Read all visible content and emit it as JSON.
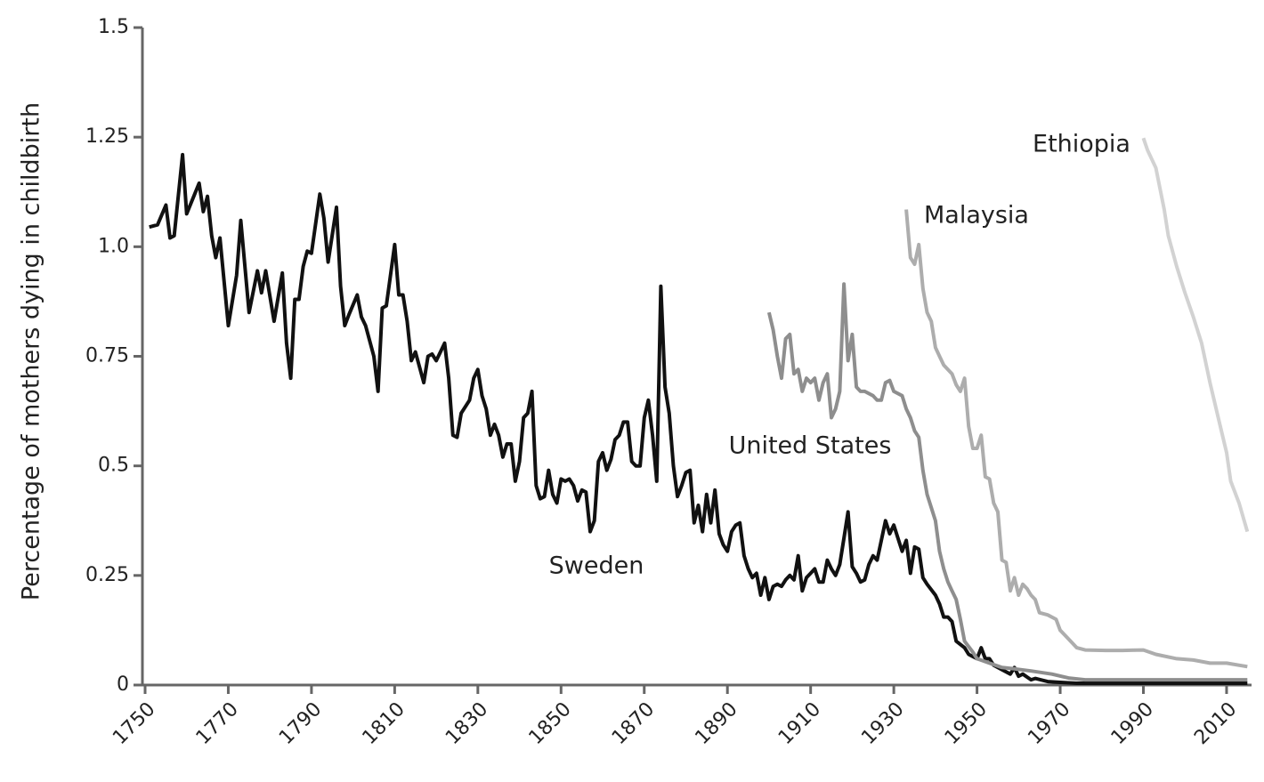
{
  "chart_data": {
    "type": "line",
    "y_label": "Percentage of mothers dying in childbirth",
    "xlim": [
      1750,
      2016
    ],
    "xticks": [
      1750,
      1770,
      1790,
      1810,
      1830,
      1850,
      1870,
      1890,
      1910,
      1930,
      1950,
      1970,
      1990,
      2010
    ],
    "ylim": [
      0,
      1.5
    ],
    "yticks": [
      0,
      0.25,
      0.5,
      0.75,
      {
        "value": 1,
        "label": "1.0"
      },
      1.25,
      1.5
    ],
    "series": [
      {
        "name": "Sweden",
        "color": "#111111",
        "x": [
          1751,
          1753,
          1755,
          1756,
          1757,
          1759,
          1760,
          1763,
          1764,
          1765,
          1766,
          1767,
          1768,
          1770,
          1772,
          1773,
          1775,
          1777,
          1778,
          1779,
          1781,
          1783,
          1784,
          1785,
          1786,
          1787,
          1788,
          1789,
          1790,
          1792,
          1793,
          1794,
          1796,
          1797,
          1798,
          1799,
          1801,
          1802,
          1803,
          1805,
          1806,
          1807,
          1808,
          1810,
          1811,
          1812,
          1813,
          1814,
          1815,
          1817,
          1818,
          1819,
          1820,
          1821,
          1822,
          1823,
          1824,
          1825,
          1826,
          1828,
          1829,
          1830,
          1831,
          1832,
          1833,
          1834,
          1835,
          1836,
          1837,
          1838,
          1839,
          1840,
          1841,
          1842,
          1843,
          1844,
          1845,
          1846,
          1847,
          1848,
          1849,
          1850,
          1851,
          1852,
          1853,
          1854,
          1855,
          1856,
          1857,
          1858,
          1859,
          1860,
          1861,
          1862,
          1863,
          1864,
          1865,
          1866,
          1867,
          1868,
          1869,
          1870,
          1871,
          1872,
          1873,
          1874,
          1875,
          1876,
          1877,
          1878,
          1879,
          1880,
          1881,
          1882,
          1883,
          1884,
          1885,
          1886,
          1887,
          1888,
          1889,
          1890,
          1891,
          1892,
          1893,
          1894,
          1895,
          1896,
          1897,
          1898,
          1899,
          1900,
          1901,
          1902,
          1903,
          1904,
          1905,
          1906,
          1907,
          1908,
          1909,
          1910,
          1911,
          1912,
          1913,
          1914,
          1915,
          1916,
          1917,
          1918,
          1919,
          1920,
          1921,
          1922,
          1923,
          1924,
          1925,
          1926,
          1928,
          1929,
          1930,
          1931,
          1932,
          1933,
          1934,
          1935,
          1936,
          1937,
          1938,
          1940,
          1941,
          1942,
          1943,
          1944,
          1945,
          1947,
          1948,
          1949,
          1950,
          1951,
          1952,
          1953,
          1954,
          1956,
          1957,
          1958,
          1959,
          1960,
          1961,
          1963,
          1964,
          1967,
          1970,
          1974,
          1978,
          1985,
          1993,
          2004,
          2015
        ],
        "values": [
          1.045,
          1.05,
          1.095,
          1.02,
          1.025,
          1.21,
          1.075,
          1.145,
          1.08,
          1.115,
          1.025,
          0.975,
          1.02,
          0.82,
          0.935,
          1.06,
          0.85,
          0.945,
          0.895,
          0.945,
          0.83,
          0.94,
          0.78,
          0.7,
          0.88,
          0.88,
          0.955,
          0.99,
          0.985,
          1.12,
          1.065,
          0.965,
          1.09,
          0.91,
          0.82,
          0.845,
          0.89,
          0.84,
          0.82,
          0.75,
          0.67,
          0.86,
          0.865,
          1.005,
          0.89,
          0.89,
          0.83,
          0.74,
          0.76,
          0.69,
          0.75,
          0.755,
          0.74,
          0.76,
          0.78,
          0.7,
          0.57,
          0.565,
          0.62,
          0.65,
          0.7,
          0.72,
          0.66,
          0.63,
          0.57,
          0.595,
          0.57,
          0.52,
          0.55,
          0.55,
          0.465,
          0.51,
          0.61,
          0.62,
          0.67,
          0.455,
          0.425,
          0.43,
          0.49,
          0.435,
          0.415,
          0.47,
          0.465,
          0.47,
          0.455,
          0.42,
          0.445,
          0.44,
          0.35,
          0.375,
          0.51,
          0.53,
          0.49,
          0.515,
          0.56,
          0.57,
          0.6,
          0.6,
          0.51,
          0.5,
          0.5,
          0.61,
          0.65,
          0.57,
          0.465,
          0.91,
          0.68,
          0.62,
          0.5,
          0.43,
          0.455,
          0.485,
          0.49,
          0.37,
          0.41,
          0.35,
          0.435,
          0.37,
          0.445,
          0.345,
          0.32,
          0.305,
          0.35,
          0.365,
          0.37,
          0.295,
          0.265,
          0.245,
          0.255,
          0.205,
          0.245,
          0.195,
          0.225,
          0.23,
          0.225,
          0.24,
          0.25,
          0.24,
          0.295,
          0.215,
          0.245,
          0.255,
          0.265,
          0.235,
          0.235,
          0.285,
          0.265,
          0.25,
          0.275,
          0.335,
          0.395,
          0.27,
          0.255,
          0.235,
          0.24,
          0.275,
          0.295,
          0.285,
          0.375,
          0.345,
          0.365,
          0.335,
          0.305,
          0.33,
          0.255,
          0.315,
          0.31,
          0.245,
          0.23,
          0.205,
          0.185,
          0.155,
          0.155,
          0.145,
          0.1,
          0.085,
          0.07,
          0.065,
          0.06,
          0.085,
          0.06,
          0.06,
          0.045,
          0.035,
          0.03,
          0.025,
          0.04,
          0.02,
          0.025,
          0.012,
          0.015,
          0.008,
          0.006,
          0.004,
          0.004,
          0.004,
          0.004,
          0.004,
          0.004
        ]
      },
      {
        "name": "United States",
        "color": "#8e8e8e",
        "x": [
          1900,
          1901,
          1902,
          1903,
          1904,
          1905,
          1906,
          1907,
          1908,
          1909,
          1910,
          1911,
          1912,
          1913,
          1914,
          1915,
          1916,
          1917,
          1918,
          1919,
          1920,
          1921,
          1922,
          1923,
          1925,
          1926,
          1927,
          1928,
          1929,
          1930,
          1932,
          1933,
          1934,
          1935,
          1936,
          1937,
          1938,
          1939,
          1940,
          1941,
          1942,
          1943,
          1944,
          1945,
          1946,
          1947,
          1949,
          1950,
          1953,
          1956,
          1959,
          1963,
          1968,
          1972,
          1976,
          1985,
          1993,
          2004,
          2015
        ],
        "values": [
          0.85,
          0.81,
          0.75,
          0.7,
          0.79,
          0.8,
          0.71,
          0.72,
          0.67,
          0.7,
          0.69,
          0.7,
          0.65,
          0.69,
          0.71,
          0.61,
          0.63,
          0.67,
          0.915,
          0.74,
          0.8,
          0.68,
          0.67,
          0.67,
          0.66,
          0.65,
          0.65,
          0.69,
          0.695,
          0.67,
          0.66,
          0.63,
          0.61,
          0.58,
          0.565,
          0.49,
          0.435,
          0.405,
          0.375,
          0.305,
          0.265,
          0.235,
          0.215,
          0.195,
          0.15,
          0.1,
          0.075,
          0.06,
          0.05,
          0.04,
          0.037,
          0.032,
          0.025,
          0.016,
          0.012,
          0.012,
          0.012,
          0.012,
          0.012
        ]
      },
      {
        "name": "Malaysia",
        "color": "#adadad",
        "x": [
          1933,
          1934,
          1935,
          1936,
          1937,
          1938,
          1939,
          1940,
          1941,
          1942,
          1944,
          1945,
          1946,
          1947,
          1948,
          1949,
          1950,
          1951,
          1952,
          1953,
          1954,
          1955,
          1956,
          1957,
          1958,
          1959,
          1960,
          1961,
          1962,
          1963,
          1964,
          1965,
          1967,
          1969,
          1970,
          1972,
          1974,
          1976,
          1981,
          1985,
          1990,
          1993,
          1998,
          2002,
          2006,
          2010,
          2015
        ],
        "values": [
          1.085,
          0.975,
          0.96,
          1.005,
          0.905,
          0.85,
          0.83,
          0.77,
          0.75,
          0.73,
          0.71,
          0.685,
          0.67,
          0.7,
          0.59,
          0.54,
          0.54,
          0.57,
          0.475,
          0.47,
          0.415,
          0.395,
          0.285,
          0.28,
          0.215,
          0.245,
          0.205,
          0.23,
          0.22,
          0.205,
          0.195,
          0.165,
          0.16,
          0.15,
          0.125,
          0.105,
          0.085,
          0.08,
          0.079,
          0.079,
          0.08,
          0.07,
          0.06,
          0.057,
          0.05,
          0.05,
          0.042
        ]
      },
      {
        "name": "Ethiopia",
        "color": "#d2d2d2",
        "x": [
          1990,
          1991,
          1993,
          1995,
          1996,
          1998,
          2000,
          2002,
          2004,
          2006,
          2008,
          2010,
          2011,
          2013,
          2015
        ],
        "values": [
          1.248,
          1.22,
          1.18,
          1.085,
          1.025,
          0.955,
          0.895,
          0.84,
          0.78,
          0.69,
          0.61,
          0.53,
          0.465,
          0.415,
          0.35
        ]
      }
    ]
  }
}
